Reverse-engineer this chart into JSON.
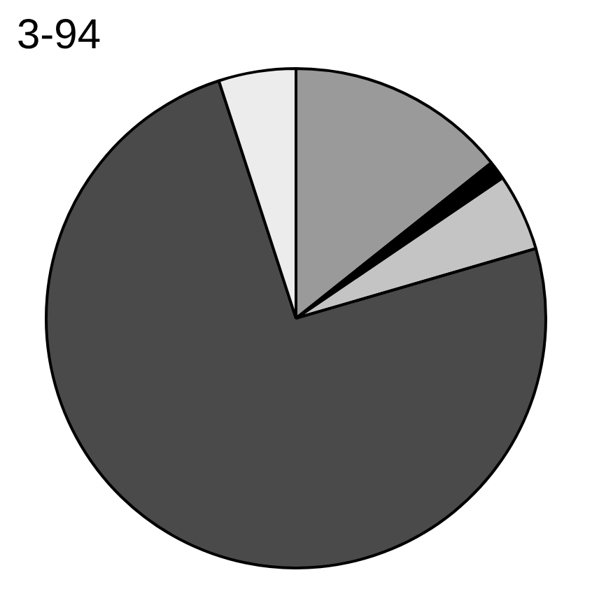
{
  "chart_data": {
    "type": "pie",
    "title": "3-94",
    "categories": [
      null,
      null,
      null,
      null,
      null
    ],
    "values": [
      14.3,
      1.2,
      5,
      74.5,
      5
    ],
    "colors": [
      "#9a9a9a",
      "#000000",
      "#c4c4c4",
      "#4a4a4a",
      "#ececec"
    ],
    "legend": false
  }
}
